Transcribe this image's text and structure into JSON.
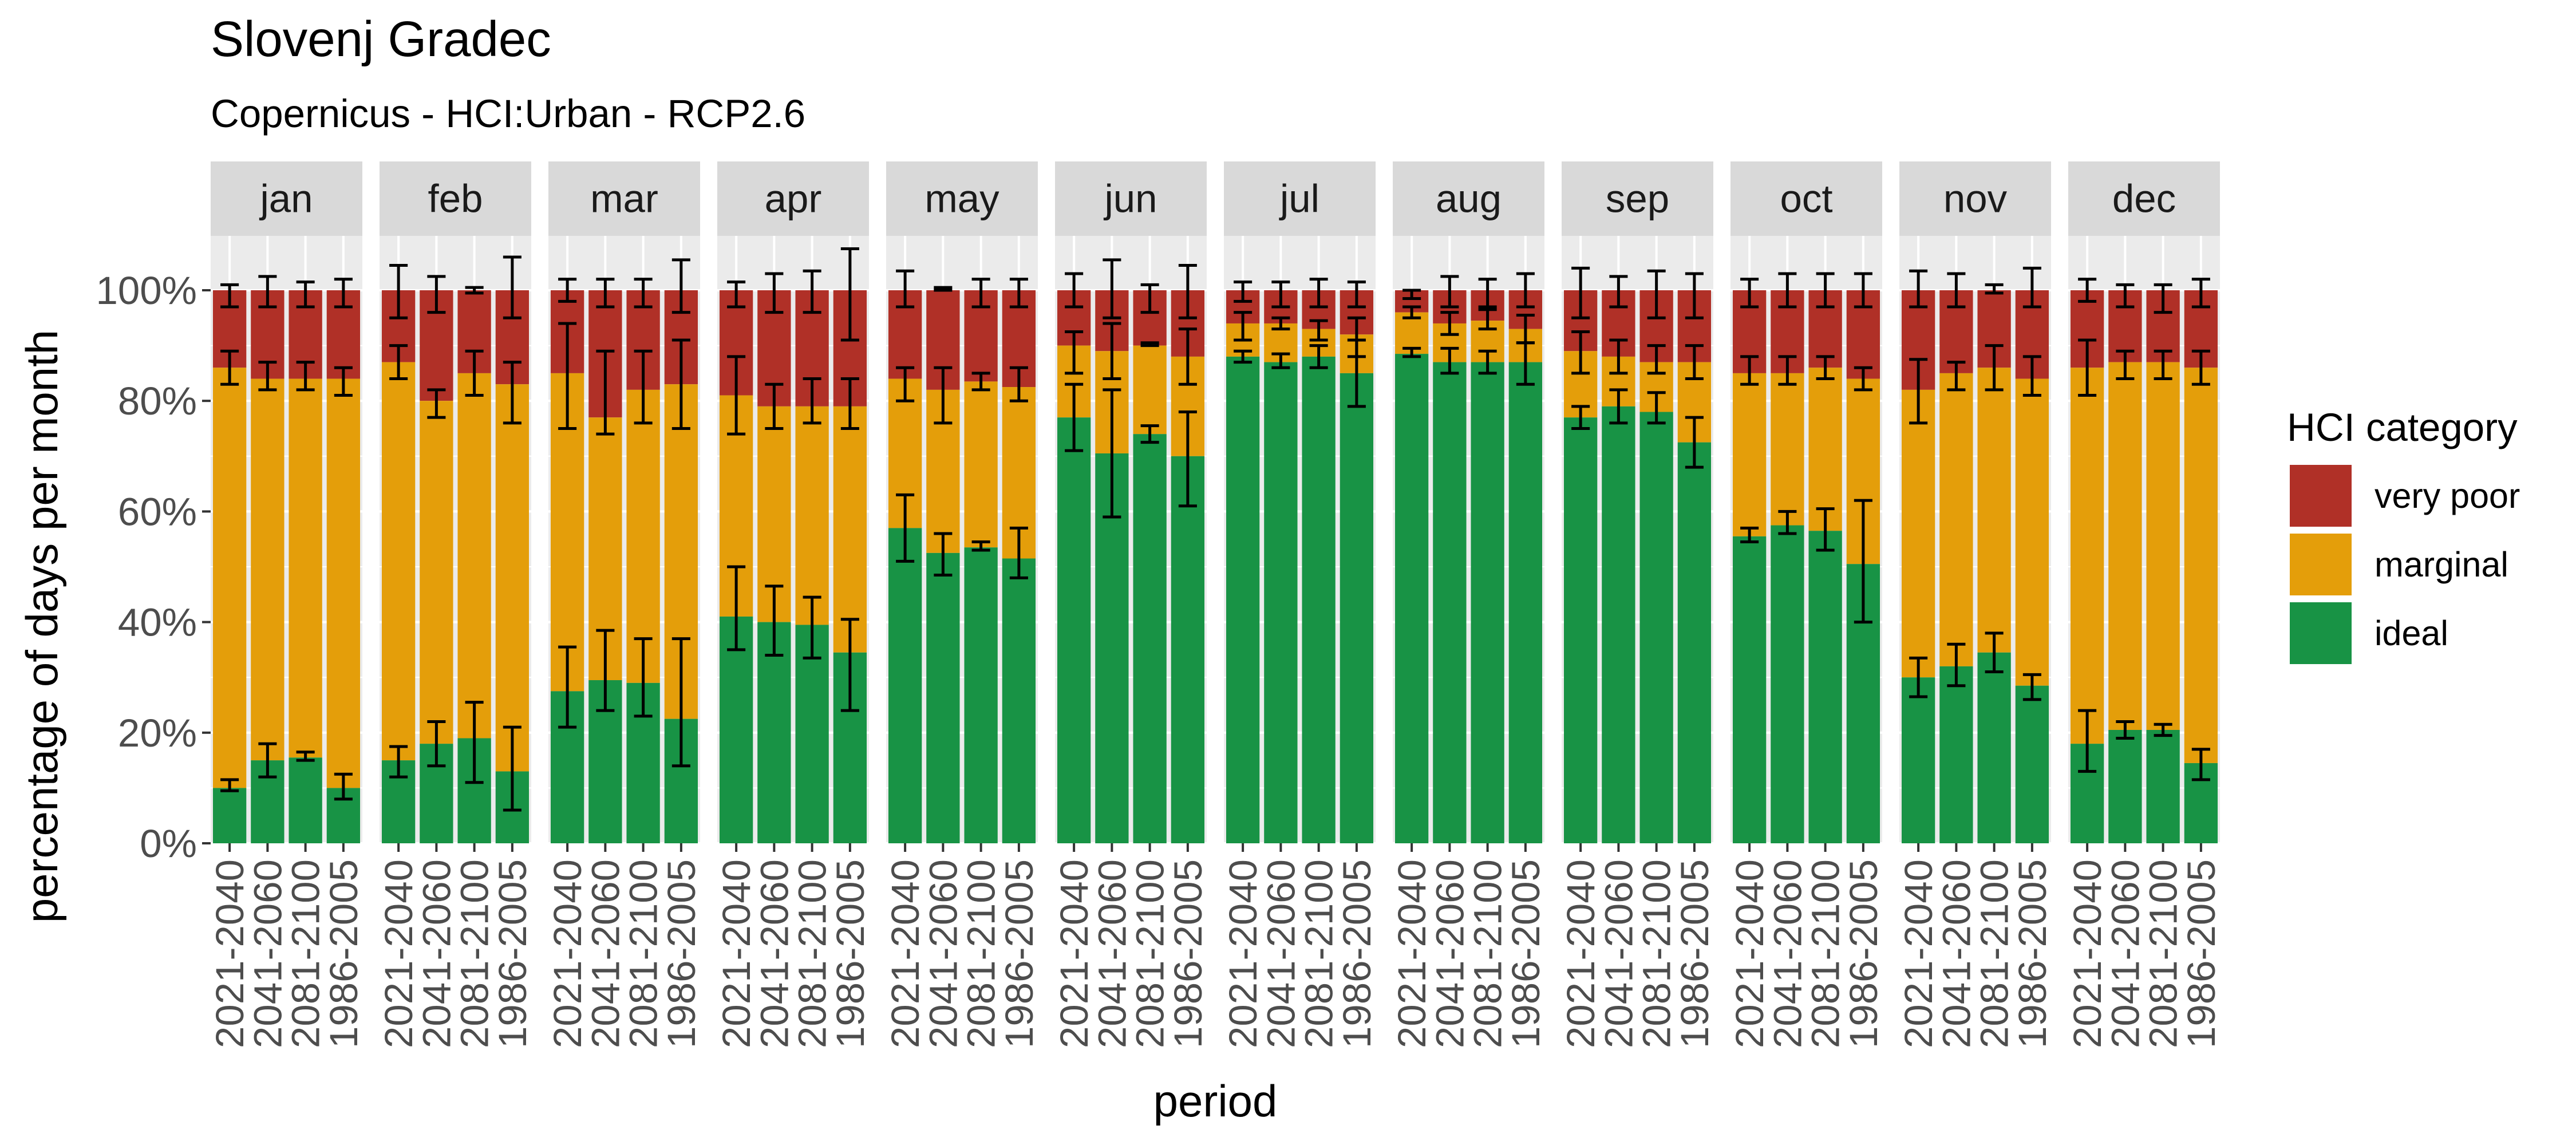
{
  "title": "Slovenj Gradec",
  "subtitle": "Copernicus - HCI:Urban - RCP2.6",
  "colors": {
    "panel_background": "#ebebeb",
    "strip_background": "#d9d9d9",
    "gridline": "#ffffff",
    "error_bar": "#000000"
  },
  "chart_data": {
    "type": "bar",
    "stacked": true,
    "xlabel": "period",
    "ylabel": "percentage of days per month",
    "ylim": [
      0,
      100
    ],
    "yticks": [
      0,
      20,
      40,
      60,
      80,
      100
    ],
    "ytick_labels": [
      "0%",
      "20%",
      "40%",
      "60%",
      "80%",
      "100%"
    ],
    "grid": true,
    "legend": {
      "title": "HCI category",
      "position": "right",
      "items": [
        {
          "label": "very poor",
          "color": "#b03027"
        },
        {
          "label": "marginal",
          "color": "#e49e0a"
        },
        {
          "label": "ideal",
          "color": "#189345"
        }
      ]
    },
    "categories": [
      "2021-2040",
      "2041-2060",
      "2081-2100",
      "1986-2005"
    ],
    "facets": [
      {
        "label": "jan",
        "ideal": [
          10,
          15,
          15.5,
          10
        ],
        "ideal_err": [
          [
            9.5,
            11.5
          ],
          [
            12,
            18
          ],
          [
            15,
            16.5
          ],
          [
            8,
            12.5
          ]
        ],
        "ideal_marginal": [
          86,
          84,
          84,
          84
        ],
        "ideal_marginal_err": [
          [
            83,
            89
          ],
          [
            82,
            87
          ],
          [
            82,
            87
          ],
          [
            81,
            86
          ]
        ],
        "total_err": [
          [
            97,
            101
          ],
          [
            97,
            102.5
          ],
          [
            97,
            101.5
          ],
          [
            97,
            102
          ]
        ]
      },
      {
        "label": "feb",
        "ideal": [
          15,
          18,
          19,
          13
        ],
        "ideal_err": [
          [
            12,
            17.5
          ],
          [
            14,
            22
          ],
          [
            11,
            25.5
          ],
          [
            6,
            21
          ]
        ],
        "ideal_marginal": [
          87,
          80,
          85,
          83
        ],
        "ideal_marginal_err": [
          [
            84,
            90
          ],
          [
            77,
            82
          ],
          [
            81,
            89
          ],
          [
            76,
            87
          ]
        ],
        "total_err": [
          [
            95,
            104.5
          ],
          [
            96,
            102.5
          ],
          [
            99.5,
            100.5
          ],
          [
            95,
            106
          ]
        ]
      },
      {
        "label": "mar",
        "ideal": [
          27.5,
          29.5,
          29,
          22.5
        ],
        "ideal_err": [
          [
            21,
            35.5
          ],
          [
            24,
            38.5
          ],
          [
            23,
            37
          ],
          [
            14,
            37
          ]
        ],
        "ideal_marginal": [
          85,
          77,
          82,
          83
        ],
        "ideal_marginal_err": [
          [
            75,
            94
          ],
          [
            74,
            89
          ],
          [
            76,
            89
          ],
          [
            75,
            91
          ]
        ],
        "total_err": [
          [
            98,
            102
          ],
          [
            97,
            102
          ],
          [
            97,
            102
          ],
          [
            96,
            105.5
          ]
        ]
      },
      {
        "label": "apr",
        "ideal": [
          41,
          40,
          39.5,
          34.5
        ],
        "ideal_err": [
          [
            35,
            50
          ],
          [
            34,
            46.5
          ],
          [
            33.5,
            44.5
          ],
          [
            24,
            40.5
          ]
        ],
        "ideal_marginal": [
          81,
          79,
          79,
          79
        ],
        "ideal_marginal_err": [
          [
            74,
            88
          ],
          [
            75,
            83
          ],
          [
            76,
            84
          ],
          [
            75,
            84
          ]
        ],
        "total_err": [
          [
            97,
            101.5
          ],
          [
            96,
            103
          ],
          [
            96,
            103.5
          ],
          [
            91,
            107.5
          ]
        ]
      },
      {
        "label": "may",
        "ideal": [
          57,
          52.5,
          53.5,
          51.5
        ],
        "ideal_err": [
          [
            51,
            63
          ],
          [
            48.5,
            56
          ],
          [
            53,
            54.5
          ],
          [
            48,
            57
          ]
        ],
        "ideal_marginal": [
          84,
          82,
          83.5,
          82.5
        ],
        "ideal_marginal_err": [
          [
            80,
            86
          ],
          [
            76,
            86
          ],
          [
            82,
            85
          ],
          [
            80,
            86
          ]
        ],
        "total_err": [
          [
            97,
            103.5
          ],
          [
            100,
            100.5
          ],
          [
            97,
            102
          ],
          [
            97,
            102
          ]
        ]
      },
      {
        "label": "jun",
        "ideal": [
          77,
          70.5,
          74,
          70
        ],
        "ideal_err": [
          [
            71,
            83
          ],
          [
            59,
            82
          ],
          [
            72.5,
            75.5
          ],
          [
            61,
            78
          ]
        ],
        "ideal_marginal": [
          90,
          89,
          90,
          88
        ],
        "ideal_marginal_err": [
          [
            85,
            92.5
          ],
          [
            84,
            94
          ],
          [
            90,
            90.5
          ],
          [
            83,
            93
          ]
        ],
        "total_err": [
          [
            97,
            103
          ],
          [
            95,
            105.5
          ],
          [
            96,
            101
          ],
          [
            95,
            104.5
          ]
        ]
      },
      {
        "label": "jul",
        "ideal": [
          88,
          87,
          88,
          85
        ],
        "ideal_err": [
          [
            87,
            89
          ],
          [
            86,
            88.5
          ],
          [
            86,
            90
          ],
          [
            79,
            91
          ]
        ],
        "ideal_marginal": [
          94,
          94,
          93,
          92
        ],
        "ideal_marginal_err": [
          [
            91,
            96
          ],
          [
            93,
            95
          ],
          [
            91,
            94.5
          ],
          [
            88,
            95
          ]
        ],
        "total_err": [
          [
            98,
            101.5
          ],
          [
            97,
            101.5
          ],
          [
            97,
            102
          ],
          [
            97,
            101.5
          ]
        ]
      },
      {
        "label": "aug",
        "ideal": [
          88.5,
          87,
          87,
          87
        ],
        "ideal_err": [
          [
            88,
            89.5
          ],
          [
            85,
            89.5
          ],
          [
            85,
            89
          ],
          [
            83,
            90.5
          ]
        ],
        "ideal_marginal": [
          96,
          94,
          94.5,
          93
        ],
        "ideal_marginal_err": [
          [
            95,
            97
          ],
          [
            92,
            96
          ],
          [
            93,
            96.5
          ],
          [
            90.5,
            95.5
          ]
        ],
        "total_err": [
          [
            98.5,
            100
          ],
          [
            97,
            102.5
          ],
          [
            97,
            102
          ],
          [
            97,
            103
          ]
        ]
      },
      {
        "label": "sep",
        "ideal": [
          77,
          79,
          78,
          72.5
        ],
        "ideal_err": [
          [
            75,
            79
          ],
          [
            76,
            82
          ],
          [
            76,
            81.5
          ],
          [
            68,
            77
          ]
        ],
        "ideal_marginal": [
          89,
          88,
          87,
          87
        ],
        "ideal_marginal_err": [
          [
            85,
            92.5
          ],
          [
            85,
            91
          ],
          [
            85,
            90
          ],
          [
            84,
            90
          ]
        ],
        "total_err": [
          [
            95,
            104
          ],
          [
            97,
            102.5
          ],
          [
            95,
            103.5
          ],
          [
            95,
            103
          ]
        ]
      },
      {
        "label": "oct",
        "ideal": [
          55.5,
          57.5,
          56.5,
          50.5
        ],
        "ideal_err": [
          [
            54.5,
            57
          ],
          [
            56,
            60
          ],
          [
            53,
            60.5
          ],
          [
            40,
            62
          ]
        ],
        "ideal_marginal": [
          85,
          85,
          86,
          84
        ],
        "ideal_marginal_err": [
          [
            83,
            88
          ],
          [
            83,
            88
          ],
          [
            84,
            88
          ],
          [
            82,
            86
          ]
        ],
        "total_err": [
          [
            97,
            102
          ],
          [
            97,
            103
          ],
          [
            97,
            103
          ],
          [
            97,
            103
          ]
        ]
      },
      {
        "label": "nov",
        "ideal": [
          30,
          32,
          34.5,
          28.5
        ],
        "ideal_err": [
          [
            26.5,
            33.5
          ],
          [
            28.5,
            36
          ],
          [
            31,
            38
          ],
          [
            26,
            30.5
          ]
        ],
        "ideal_marginal": [
          82,
          85,
          86,
          84
        ],
        "ideal_marginal_err": [
          [
            76,
            87.5
          ],
          [
            82,
            87
          ],
          [
            82,
            90
          ],
          [
            81,
            88
          ]
        ],
        "total_err": [
          [
            97,
            103.5
          ],
          [
            97,
            103
          ],
          [
            99.5,
            101
          ],
          [
            97,
            104
          ]
        ]
      },
      {
        "label": "dec",
        "ideal": [
          18,
          20.5,
          20.5,
          14.5
        ],
        "ideal_err": [
          [
            13,
            24
          ],
          [
            19,
            22
          ],
          [
            19.5,
            21.5
          ],
          [
            11.5,
            17
          ]
        ],
        "ideal_marginal": [
          86,
          87,
          87,
          86
        ],
        "ideal_marginal_err": [
          [
            81,
            91
          ],
          [
            84,
            89
          ],
          [
            84,
            89
          ],
          [
            83,
            89
          ]
        ],
        "total_err": [
          [
            98,
            102
          ],
          [
            97,
            101
          ],
          [
            96,
            101
          ],
          [
            97,
            102
          ]
        ]
      }
    ]
  }
}
